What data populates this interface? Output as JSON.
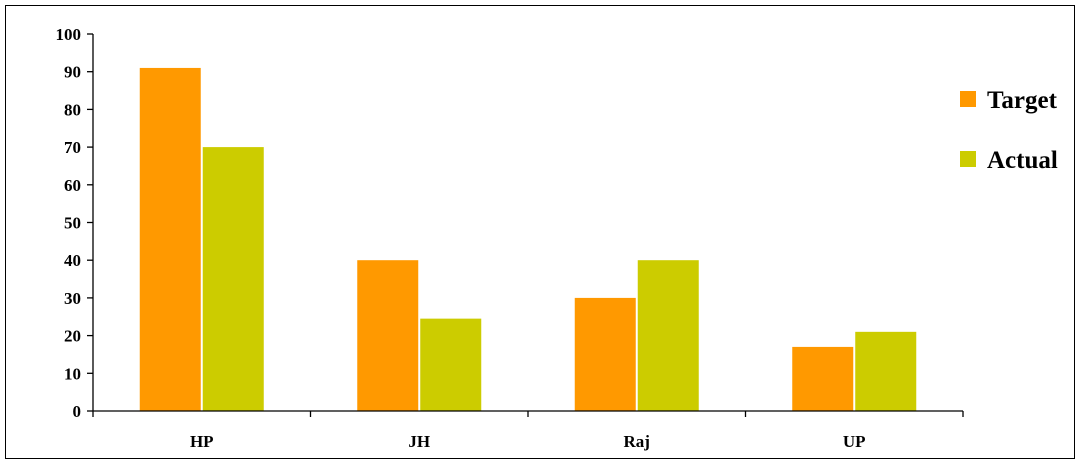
{
  "chart_data": {
    "type": "bar",
    "categories": [
      "HP",
      "JH",
      "Raj",
      "UP"
    ],
    "series": [
      {
        "name": "Target",
        "values": [
          91,
          40,
          30,
          17
        ],
        "color": "#FF9900"
      },
      {
        "name": "Actual",
        "values": [
          70,
          24.5,
          40,
          21
        ],
        "color": "#CCCC00"
      }
    ],
    "yticks": [
      0,
      10,
      20,
      30,
      40,
      50,
      60,
      70,
      80,
      90,
      100
    ],
    "ylim": [
      0,
      100
    ],
    "title": "",
    "xlabel": "",
    "ylabel": "",
    "grid": false,
    "legend_position": "right"
  }
}
